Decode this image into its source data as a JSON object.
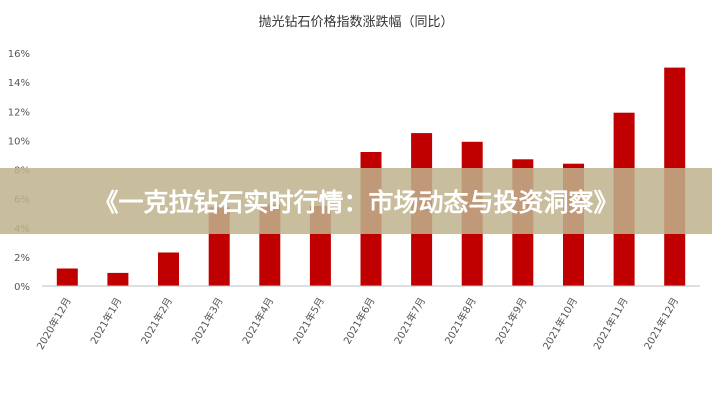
{
  "colors": {
    "bar": "#c00000",
    "axis": "#bfbfbf",
    "text": "#333333",
    "banner_bg": "#bfb28c",
    "banner_text": "#ffffff"
  },
  "banner": {
    "text": "《一克拉钻石实时行情：市场动态与投资洞察》"
  },
  "chart_data": {
    "type": "bar",
    "title": "抛光钻石价格指数涨跌幅（同比）",
    "xlabel": "",
    "ylabel": "",
    "categories": [
      "2020年12月",
      "2021年1月",
      "2021年2月",
      "2021年3月",
      "2021年4月",
      "2021年5月",
      "2021年6月",
      "2021年7月",
      "2021年8月",
      "2021年9月",
      "2021年10月",
      "2021年11月",
      "2021年12月"
    ],
    "values": [
      1.2,
      0.9,
      2.3,
      5.4,
      5.6,
      5.5,
      9.2,
      10.5,
      9.9,
      8.7,
      8.4,
      11.9,
      15.0
    ],
    "ylim": [
      0,
      16
    ],
    "yticks": [
      "0%",
      "2%",
      "4%",
      "6%",
      "8%",
      "10%",
      "12%",
      "14%",
      "16%"
    ],
    "grid": false,
    "legend": "none"
  }
}
